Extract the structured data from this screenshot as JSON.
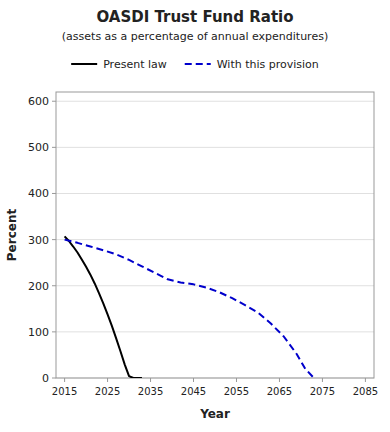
{
  "chart_data": {
    "type": "line",
    "title": "OASDI Trust Fund Ratio",
    "subtitle": "(assets as a percentage of annual expenditures)",
    "x_label": "Year",
    "y_label": "Percent",
    "xlim": [
      2013,
      2087
    ],
    "ylim": [
      0,
      620
    ],
    "xticks": [
      2015,
      2025,
      2035,
      2045,
      2055,
      2065,
      2075,
      2085
    ],
    "yticks": [
      0,
      100,
      200,
      300,
      400,
      500,
      600
    ],
    "grid": true,
    "legend": "top",
    "series": [
      {
        "name": "Present law",
        "color": "#000000",
        "line_style": "solid",
        "x": [
          2015,
          2016,
          2017,
          2018,
          2019,
          2020,
          2021,
          2022,
          2023,
          2024,
          2025,
          2026,
          2027,
          2028,
          2029,
          2030,
          2031,
          2032,
          2033
        ],
        "values": [
          307,
          297,
          285,
          272,
          257,
          241,
          224,
          205,
          184,
          162,
          138,
          113,
          86,
          58,
          29,
          4,
          0,
          0,
          0
        ]
      },
      {
        "name": "With this provision",
        "color": "#0000cc",
        "line_style": "dashed",
        "x": [
          2015,
          2018,
          2021,
          2024,
          2027,
          2030,
          2033,
          2036,
          2039,
          2042,
          2045,
          2048,
          2051,
          2054,
          2057,
          2060,
          2063,
          2066,
          2069,
          2071,
          2073
        ],
        "values": [
          300,
          293,
          285,
          277,
          268,
          256,
          242,
          228,
          214,
          207,
          203,
          196,
          186,
          173,
          158,
          142,
          118,
          90,
          52,
          20,
          0
        ]
      }
    ]
  }
}
